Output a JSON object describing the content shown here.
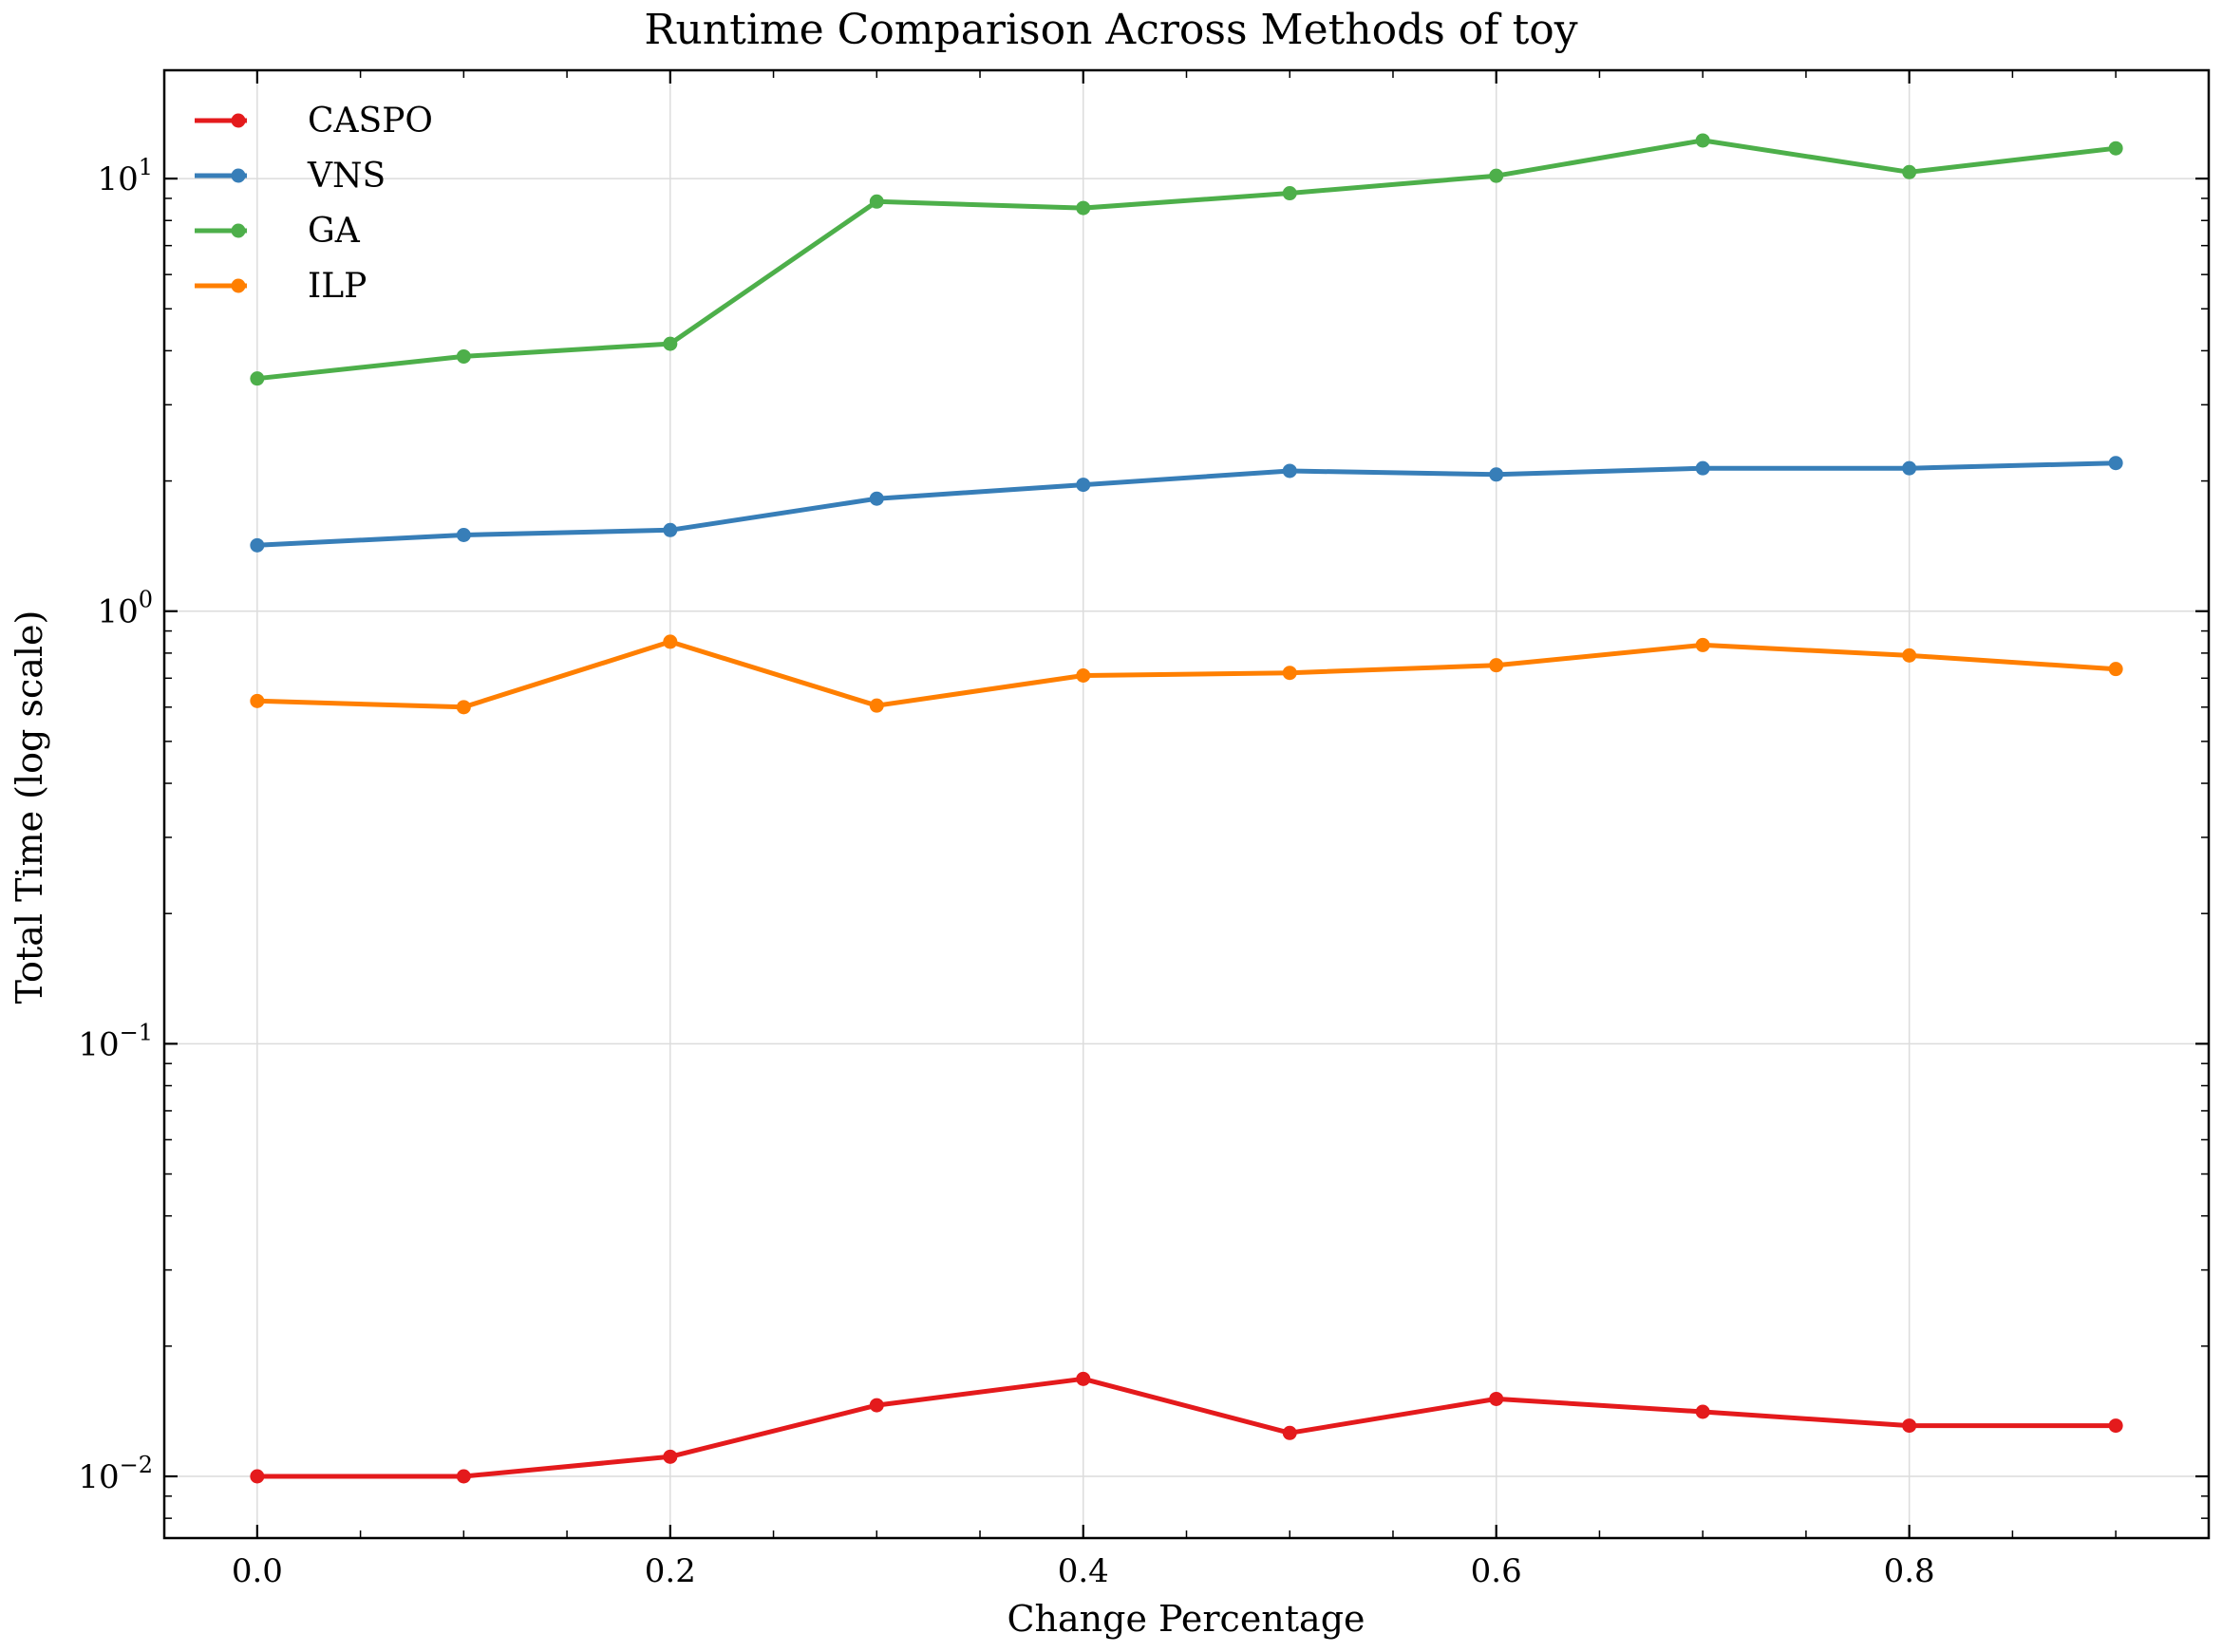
{
  "chart_data": {
    "type": "line",
    "title": "Runtime Comparison Across Methods of toy",
    "xlabel": "Change Percentage",
    "ylabel": "Total Time (log scale)",
    "yscale": "log",
    "xlim": [
      -0.045,
      0.945
    ],
    "ylim": [
      0.0072,
      17.8
    ],
    "x_ticks": [
      {
        "value": 0.0,
        "label": "0.0"
      },
      {
        "value": 0.2,
        "label": "0.2"
      },
      {
        "value": 0.4,
        "label": "0.4"
      },
      {
        "value": 0.6,
        "label": "0.6"
      },
      {
        "value": 0.8,
        "label": "0.8"
      }
    ],
    "y_ticks": [
      {
        "value": 0.01,
        "base": "10",
        "exp": "−2"
      },
      {
        "value": 0.1,
        "base": "10",
        "exp": "−1"
      },
      {
        "value": 1,
        "base": "10",
        "exp": "0"
      },
      {
        "value": 10,
        "base": "10",
        "exp": "1"
      }
    ],
    "grid": true,
    "legend_position": "top-left",
    "x": [
      0.0,
      0.1,
      0.2,
      0.3,
      0.4,
      0.5,
      0.6,
      0.7,
      0.8,
      0.9
    ],
    "series": [
      {
        "name": "CASPO",
        "color": "#e41a1c",
        "values": [
          0.01,
          0.01,
          0.0111,
          0.0146,
          0.0168,
          0.0126,
          0.0151,
          0.0141,
          0.0131,
          0.0131
        ]
      },
      {
        "name": "VNS",
        "color": "#377eb8",
        "values": [
          1.42,
          1.5,
          1.54,
          1.82,
          1.96,
          2.11,
          2.07,
          2.14,
          2.14,
          2.2
        ]
      },
      {
        "name": "GA",
        "color": "#4daf4a",
        "values": [
          3.45,
          3.88,
          4.15,
          8.85,
          8.55,
          9.25,
          10.15,
          12.25,
          10.35,
          11.75
        ]
      },
      {
        "name": "ILP",
        "color": "#ff7f00",
        "values": [
          0.62,
          0.6,
          0.85,
          0.605,
          0.71,
          0.72,
          0.75,
          0.835,
          0.79,
          0.735
        ]
      }
    ]
  }
}
